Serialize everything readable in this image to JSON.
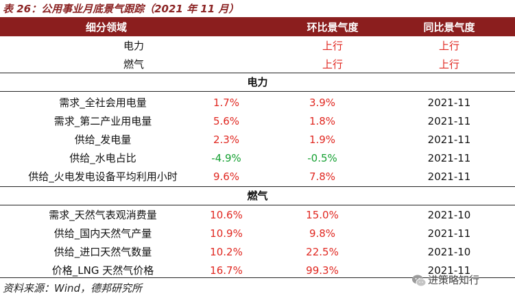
{
  "title": "表 26：公用事业月底景气跟踪（2021 年 11 月）",
  "header": {
    "col1": "细分领域",
    "col2": "环比景气度",
    "col3": "同比景气度"
  },
  "summary": [
    {
      "name": "电力",
      "mom": "上行",
      "yoy": "上行"
    },
    {
      "name": "燃气",
      "mom": "上行",
      "yoy": "上行"
    }
  ],
  "sections": [
    {
      "title": "电力",
      "rows": [
        {
          "name": "需求_全社会用电量",
          "v1": "1.7%",
          "v2": "3.9%",
          "date": "2021-11",
          "c1": "red",
          "c2": "red"
        },
        {
          "name": "需求_第二产业用电量",
          "v1": "5.6%",
          "v2": "1.8%",
          "date": "2021-11",
          "c1": "red",
          "c2": "red"
        },
        {
          "name": "供给_发电量",
          "v1": "2.3%",
          "v2": "1.9%",
          "date": "2021-11",
          "c1": "red",
          "c2": "red"
        },
        {
          "name": "供给_水电占比",
          "v1": "-4.9%",
          "v2": "-0.5%",
          "date": "2021-11",
          "c1": "green",
          "c2": "green"
        },
        {
          "name": "供给_火电发电设备平均利用小时",
          "v1": "9.6%",
          "v2": "7.8%",
          "date": "2021-11",
          "c1": "red",
          "c2": "red"
        }
      ]
    },
    {
      "title": "燃气",
      "rows": [
        {
          "name": "需求_天然气表观消费量",
          "v1": "10.6%",
          "v2": "15.0%",
          "date": "2021-10",
          "c1": "red",
          "c2": "red"
        },
        {
          "name": "供给_国内天然气产量",
          "v1": "10.9%",
          "v2": "9.8%",
          "date": "2021-11",
          "c1": "red",
          "c2": "red"
        },
        {
          "name": "供给_进口天然气数量",
          "v1": "10.2%",
          "v2": "22.5%",
          "date": "2021-10",
          "c1": "red",
          "c2": "red"
        },
        {
          "name": "价格_LNG 天然气价格",
          "v1": "16.7%",
          "v2": "99.3%",
          "date": "2021-11",
          "c1": "red",
          "c2": "red"
        }
      ]
    }
  ],
  "source": "资料来源：Wind，德邦研究所",
  "watermark": "进策略知行",
  "colors": {
    "brand": "#8b1e1e",
    "up": "#e0261f",
    "down": "#14a031"
  },
  "icons": {
    "watermark": "wechat-icon"
  }
}
